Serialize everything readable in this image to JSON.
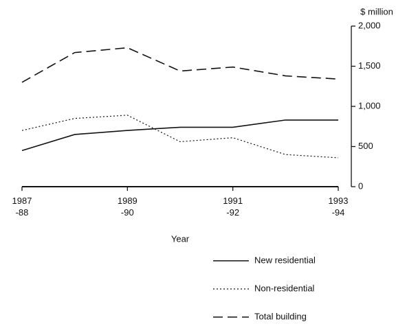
{
  "chart_data": {
    "type": "line",
    "y_axis_label": "$ million",
    "x_axis_label": "Year",
    "categories": [
      "1987\n-88",
      null,
      "1989\n-90",
      null,
      "1991\n-92",
      null,
      "1993\n-94"
    ],
    "series": [
      {
        "name": "New residential",
        "color": "#111111",
        "dash": "solid",
        "values": [
          450,
          650,
          700,
          740,
          740,
          830,
          830
        ]
      },
      {
        "name": "Non-residential",
        "color": "#111111",
        "dash": "dotted",
        "values": [
          700,
          850,
          890,
          560,
          610,
          400,
          360
        ]
      },
      {
        "name": "Total building",
        "color": "#111111",
        "dash": "dashed",
        "values": [
          1300,
          1670,
          1730,
          1440,
          1490,
          1380,
          1340
        ]
      }
    ],
    "ylim": [
      0,
      2000
    ],
    "yticks": [
      0,
      500,
      {
        "value": 1000,
        "label": "1,000"
      },
      {
        "value": 1500,
        "label": "1,500"
      },
      {
        "value": 2000,
        "label": "2,000"
      }
    ],
    "y_axis_side": "right",
    "legend": "bottom-right"
  }
}
